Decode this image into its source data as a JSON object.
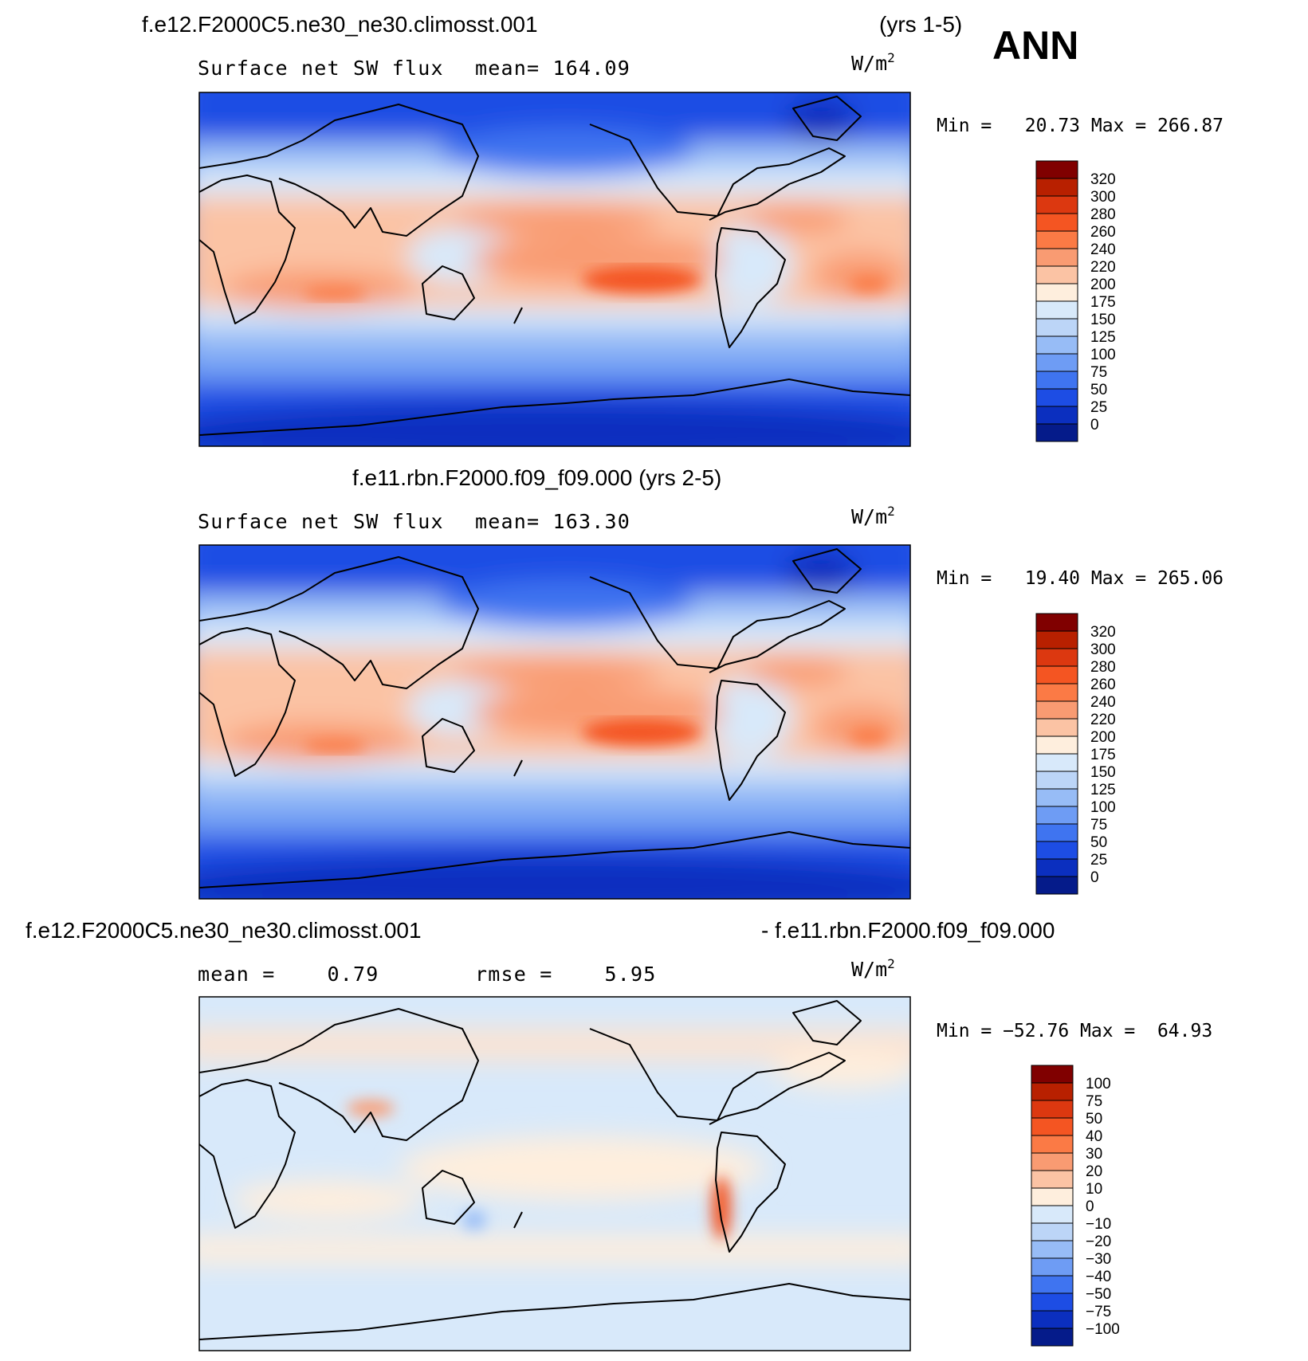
{
  "season": "ANN",
  "chart_data": [
    {
      "type": "contour_map",
      "case_title": "f.e12.F2000C5.ne30_ne30.climosst.001",
      "years": "(yrs 1-5)",
      "variable": "Surface net SW flux",
      "mean_label": "mean= 164.09",
      "units": "W/m",
      "units_sup": "2",
      "min_max_label": "Min =   20.73 Max = 266.87",
      "colorbar": {
        "levels": [
          "320",
          "300",
          "280",
          "260",
          "240",
          "220",
          "200",
          "175",
          "150",
          "125",
          "100",
          "75",
          "50",
          "25",
          "0"
        ],
        "colors": [
          "#800000",
          "#b82000",
          "#dc3810",
          "#f45522",
          "#fb7a45",
          "#f99b72",
          "#fbc3a4",
          "#feeedd",
          "#d8e9fa",
          "#bcd5f7",
          "#97bcf6",
          "#6e9cf4",
          "#3f74f0",
          "#1d4de4",
          "#0b2fbf",
          "#051b8a"
        ]
      }
    },
    {
      "type": "contour_map",
      "case_title": "f.e11.rbn.F2000.f09_f09.000 (yrs 2-5)",
      "variable": "Surface net SW flux",
      "mean_label": "mean= 163.30",
      "units": "W/m",
      "units_sup": "2",
      "min_max_label": "Min =   19.40 Max = 265.06",
      "colorbar": {
        "levels": [
          "320",
          "300",
          "280",
          "260",
          "240",
          "220",
          "200",
          "175",
          "150",
          "125",
          "100",
          "75",
          "50",
          "25",
          "0"
        ],
        "colors": [
          "#800000",
          "#b82000",
          "#dc3810",
          "#f45522",
          "#fb7a45",
          "#f99b72",
          "#fbc3a4",
          "#feeedd",
          "#d8e9fa",
          "#bcd5f7",
          "#97bcf6",
          "#6e9cf4",
          "#3f74f0",
          "#1d4de4",
          "#0b2fbf",
          "#051b8a"
        ]
      }
    },
    {
      "type": "contour_map_difference",
      "case_a": "f.e12.F2000C5.ne30_ne30.climosst.001",
      "case_b": "- f.e11.rbn.F2000.f09_f09.000",
      "mean_label": "mean =    0.79",
      "rmse_label": "rmse =    5.95",
      "units": "W/m",
      "units_sup": "2",
      "min_max_label": "Min = −52.76 Max =  64.93",
      "colorbar": {
        "levels": [
          "100",
          "75",
          "50",
          "40",
          "30",
          "20",
          "10",
          "0",
          "−10",
          "−20",
          "−30",
          "−40",
          "−50",
          "−75",
          "−100"
        ],
        "colors": [
          "#800000",
          "#b82000",
          "#dc3810",
          "#f45522",
          "#fb7a45",
          "#f99b72",
          "#fbc3a4",
          "#feeedd",
          "#d8e9fa",
          "#bcd5f7",
          "#97bcf6",
          "#6e9cf4",
          "#3f74f0",
          "#1d4de4",
          "#0b2fbf",
          "#051b8a"
        ]
      }
    }
  ]
}
